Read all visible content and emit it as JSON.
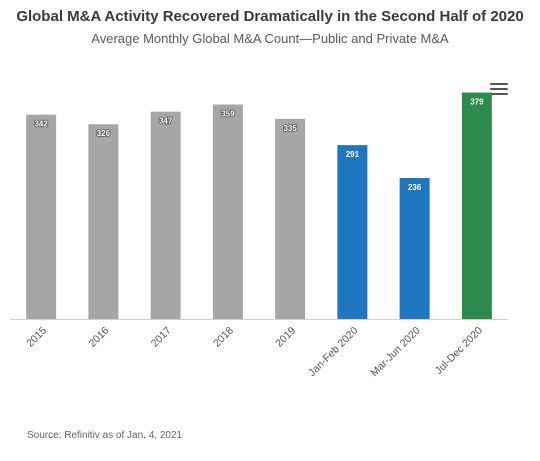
{
  "header": {
    "title": "Global M&A Activity Recovered Dramatically in the Second Half of 2020",
    "subtitle": "Average Monthly Global M&A Count—Public and Private M&A"
  },
  "menu": {
    "icon": "hamburger-menu-icon"
  },
  "footer": {
    "source": "Source: Refinitiv as of Jan. 4, 2021"
  },
  "colors": {
    "gray": "#a6a6a6",
    "blue": "#1f77c0",
    "green": "#2e8b4e"
  },
  "chart_data": {
    "type": "bar",
    "title": "Global M&A Activity Recovered Dramatically in the Second Half of 2020",
    "subtitle": "Average Monthly Global M&A Count—Public and Private M&A",
    "categories": [
      "2015",
      "2016",
      "2017",
      "2018",
      "2019",
      "Jan-Feb 2020",
      "Mar-Jun 2020",
      "Jul-Dec 2020"
    ],
    "values": [
      342,
      326,
      347,
      359,
      335,
      291,
      236,
      379
    ],
    "bar_colors": [
      "#a6a6a6",
      "#a6a6a6",
      "#a6a6a6",
      "#a6a6a6",
      "#a6a6a6",
      "#1f77c0",
      "#1f77c0",
      "#2e8b4e"
    ],
    "ylim": [
      0,
      395
    ],
    "xlabel": "",
    "ylabel": "",
    "grid": false,
    "legend": "none",
    "data_labels": true
  }
}
